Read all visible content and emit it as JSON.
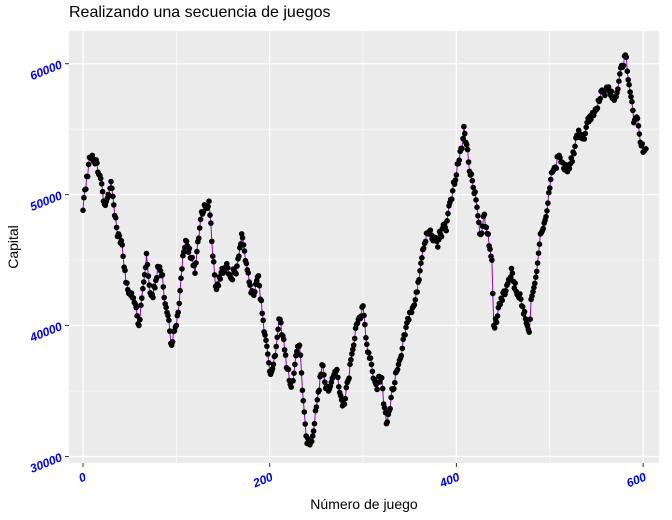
{
  "chart_data": {
    "type": "line",
    "title": "Realizando una secuencia de juegos",
    "xlabel": "Número de juego",
    "ylabel": "Capital",
    "xlim": [
      -15,
      617
    ],
    "ylim": [
      29500,
      62500
    ],
    "x_ticks": [
      0,
      200,
      400,
      600
    ],
    "x_tick_labels": [
      "0",
      "200",
      "400",
      "600"
    ],
    "y_ticks": [
      30000,
      40000,
      50000,
      60000
    ],
    "y_tick_labels": [
      "30000",
      "40000",
      "50000",
      "60000"
    ],
    "grid": true,
    "line_color": "#9900CC",
    "point_color": "#000000",
    "tick_label_color": "#0000FF",
    "panel_color": "#EBEBEB",
    "series": [
      {
        "name": "Capital",
        "anchors_x": [
          0,
          10,
          22,
          30,
          38,
          50,
          60,
          68,
          72,
          80,
          90,
          95,
          100,
          110,
          120,
          135,
          142,
          150,
          160,
          170,
          180,
          188,
          200,
          210,
          222,
          232,
          240,
          248,
          256,
          263,
          270,
          280,
          290,
          300,
          310,
          320,
          325,
          330,
          340,
          350,
          360,
          370,
          380,
          390,
          400,
          408,
          415,
          425,
          430,
          438,
          440,
          450,
          460,
          470,
          478,
          480,
          490,
          500,
          510,
          520,
          530,
          540,
          550,
          560,
          570,
          582,
          590,
          597,
          603
        ],
        "anchors_y": [
          48800,
          53000,
          49500,
          51000,
          47000,
          42500,
          40000,
          45500,
          42500,
          44500,
          41000,
          38500,
          40000,
          46500,
          44000,
          49500,
          43000,
          44000,
          43500,
          47000,
          42500,
          43800,
          36500,
          40500,
          35500,
          38500,
          31000,
          32500,
          37000,
          35000,
          36500,
          34000,
          38500,
          41500,
          36500,
          36000,
          32500,
          34500,
          37500,
          41000,
          43500,
          47000,
          46000,
          48000,
          51500,
          55200,
          51500,
          47000,
          48500,
          45000,
          40000,
          42500,
          44000,
          41500,
          39500,
          42000,
          47000,
          50500,
          53000,
          52000,
          54500,
          55500,
          56500,
          58000,
          57500,
          60500,
          55500,
          54000,
          53500
        ],
        "seed": 20231,
        "step_noise": 550
      }
    ]
  }
}
